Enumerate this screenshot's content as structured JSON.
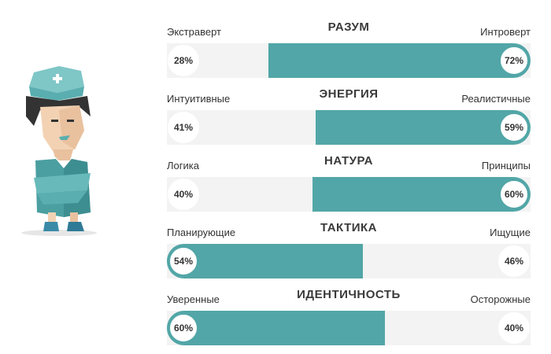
{
  "colors": {
    "accent": "#52a6a7",
    "track": "#f3f3f3"
  },
  "avatar_icon": "nurse-character-illustration",
  "traits": [
    {
      "title": "РАЗУМ",
      "left_label": "Экстраверт",
      "right_label": "Интроверт",
      "left_pct": "28%",
      "right_pct": "72%",
      "left_value": 28,
      "dominant": "right"
    },
    {
      "title": "ЭНЕРГИЯ",
      "left_label": "Интуитивные",
      "right_label": "Реалистичные",
      "left_pct": "41%",
      "right_pct": "59%",
      "left_value": 41,
      "dominant": "right"
    },
    {
      "title": "НАТУРА",
      "left_label": "Логика",
      "right_label": "Принципы",
      "left_pct": "40%",
      "right_pct": "60%",
      "left_value": 40,
      "dominant": "right"
    },
    {
      "title": "ТАКТИКА",
      "left_label": "Планирующие",
      "right_label": "Ищущие",
      "left_pct": "54%",
      "right_pct": "46%",
      "left_value": 54,
      "dominant": "left"
    },
    {
      "title": "ИДЕНТИЧНОСТЬ",
      "left_label": "Уверенные",
      "right_label": "Осторожные",
      "left_pct": "60%",
      "right_pct": "40%",
      "left_value": 60,
      "dominant": "left"
    }
  ]
}
